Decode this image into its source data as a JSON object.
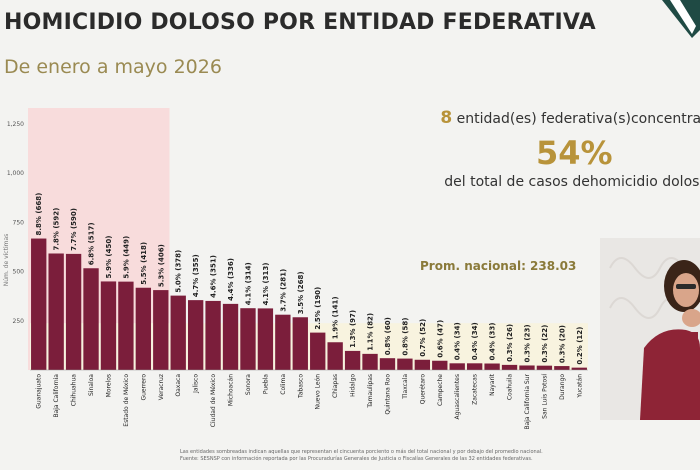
{
  "header": {
    "title": "HOMICIDIO DOLOSO POR ENTIDAD FEDERATIVA",
    "subtitle": "De enero a mayo 2026"
  },
  "summary": {
    "count": "8",
    "text1": "entidad(es) federativa(s)concentran",
    "percent": "54%",
    "text2": "del total de casos dehomicidio doloso"
  },
  "average_label": "Prom. nacional: 238.03",
  "footer": {
    "line1": "Las entidades sombreadas indican aquellas que representan el cincuenta porciento o más del total nacional y por debajo del promedio nacional.",
    "line2": "Fuente: SESNSP con información reportada por las Procuradurías Generales de Justicia o Fiscalías Generales de las 32 entidades federativas."
  },
  "colors": {
    "bar": "#7b1e3b",
    "highlight": "#f8dcdc",
    "below_average_band": "#f8f3df",
    "accent": "#b8933a"
  },
  "chart_data": {
    "type": "bar",
    "ylabel": "Núm. de víctimas",
    "ylim": [
      0,
      1250
    ],
    "yticks": [
      250,
      500,
      750,
      1000,
      1250
    ],
    "average": 238.03,
    "highlighted_count": 8,
    "categories": [
      "Guanajuato",
      "Baja California",
      "Chihuahua",
      "Sinaloa",
      "Morelos",
      "Estado de México",
      "Guerrero",
      "Veracruz",
      "Oaxaca",
      "Jalisco",
      "Ciudad de México",
      "Michoacán",
      "Sonora",
      "Puebla",
      "Colima",
      "Tabasco",
      "Nuevo León",
      "Chiapas",
      "Hidalgo",
      "Tamaulipas",
      "Quintana Roo",
      "Tlaxcala",
      "Querétaro",
      "Campeche",
      "Aguascalientes",
      "Zacatecas",
      "Nayarit",
      "Coahuila",
      "Baja California Sur",
      "San Luis Potosí",
      "Durango",
      "Yucatán"
    ],
    "values": [
      668,
      592,
      590,
      517,
      450,
      449,
      418,
      406,
      378,
      355,
      351,
      336,
      314,
      313,
      281,
      268,
      190,
      141,
      97,
      82,
      60,
      58,
      52,
      47,
      34,
      34,
      33,
      26,
      23,
      22,
      20,
      12
    ],
    "labels": [
      "8.8% (668)",
      "7.8% (592)",
      "7.7% (590)",
      "6.8% (517)",
      "5.9% (450)",
      "5.9% (449)",
      "5.5% (418)",
      "5.3% (406)",
      "5.0% (378)",
      "4.7% (355)",
      "4.6% (351)",
      "4.4% (336)",
      "4.1% (314)",
      "4.1% (313)",
      "3.7% (281)",
      "3.5% (268)",
      "2.5% (190)",
      "1.9% (141)",
      "1.3% (97)",
      "1.1% (82)",
      "0.8% (60)",
      "0.8% (58)",
      "0.7% (52)",
      "0.6% (47)",
      "0.4% (34)",
      "0.4% (34)",
      "0.4% (33)",
      "0.3% (26)",
      "0.3% (23)",
      "0.3% (22)",
      "0.3% (20)",
      "0.2% (12)"
    ]
  }
}
